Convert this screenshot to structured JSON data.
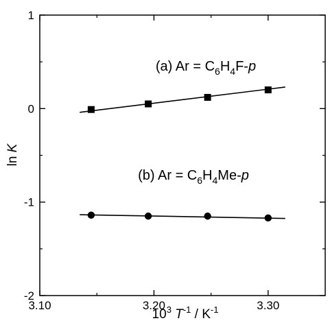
{
  "chart_data": {
    "type": "scatter",
    "xlabel": {
      "base": "10",
      "exp1": "3",
      "var": "T",
      "exp2": "-1",
      "unit": " / K",
      "exp3": "-1"
    },
    "ylabel": {
      "prefix": "ln ",
      "var": "K"
    },
    "xlim": [
      3.1,
      3.35
    ],
    "ylim": [
      -2,
      1
    ],
    "x_ticks": [
      3.1,
      3.2,
      3.3
    ],
    "x_tick_labels": [
      "3.10",
      "3.20",
      "3.30"
    ],
    "x_minor_ticks": [
      3.15,
      3.25
    ],
    "y_ticks": [
      -2,
      -1,
      0,
      1
    ],
    "y_tick_labels": [
      "-2",
      "-1",
      "0",
      "1"
    ],
    "y_minor_ticks": [
      -1.5,
      -0.5,
      0.5
    ],
    "grid": false,
    "series": [
      {
        "name": "(a)  Ar = C6H4F-p",
        "label_parts": {
          "prefix": "(a)  Ar = C",
          "sub1": "6",
          "mid": "H",
          "sub2": "4",
          "suffix": "F-",
          "italic": "p"
        },
        "marker": "square",
        "x": [
          3.145,
          3.195,
          3.247,
          3.3
        ],
        "y": [
          -0.01,
          0.05,
          0.12,
          0.2
        ],
        "fit_line": {
          "x": [
            3.135,
            3.315
          ],
          "y": [
            -0.04,
            0.23
          ]
        }
      },
      {
        "name": "(b)  Ar = C6H4Me-p",
        "label_parts": {
          "prefix": "(b)  Ar = C",
          "sub1": "6",
          "mid": "H",
          "sub2": "4",
          "suffix": "Me-",
          "italic": "p"
        },
        "marker": "circle",
        "x": [
          3.145,
          3.195,
          3.247,
          3.3
        ],
        "y": [
          -1.14,
          -1.15,
          -1.15,
          -1.17
        ],
        "fit_line": {
          "x": [
            3.135,
            3.315
          ],
          "y": [
            -1.135,
            -1.175
          ]
        }
      }
    ],
    "colors": {
      "ink": "#000000",
      "background": "#ffffff"
    }
  }
}
